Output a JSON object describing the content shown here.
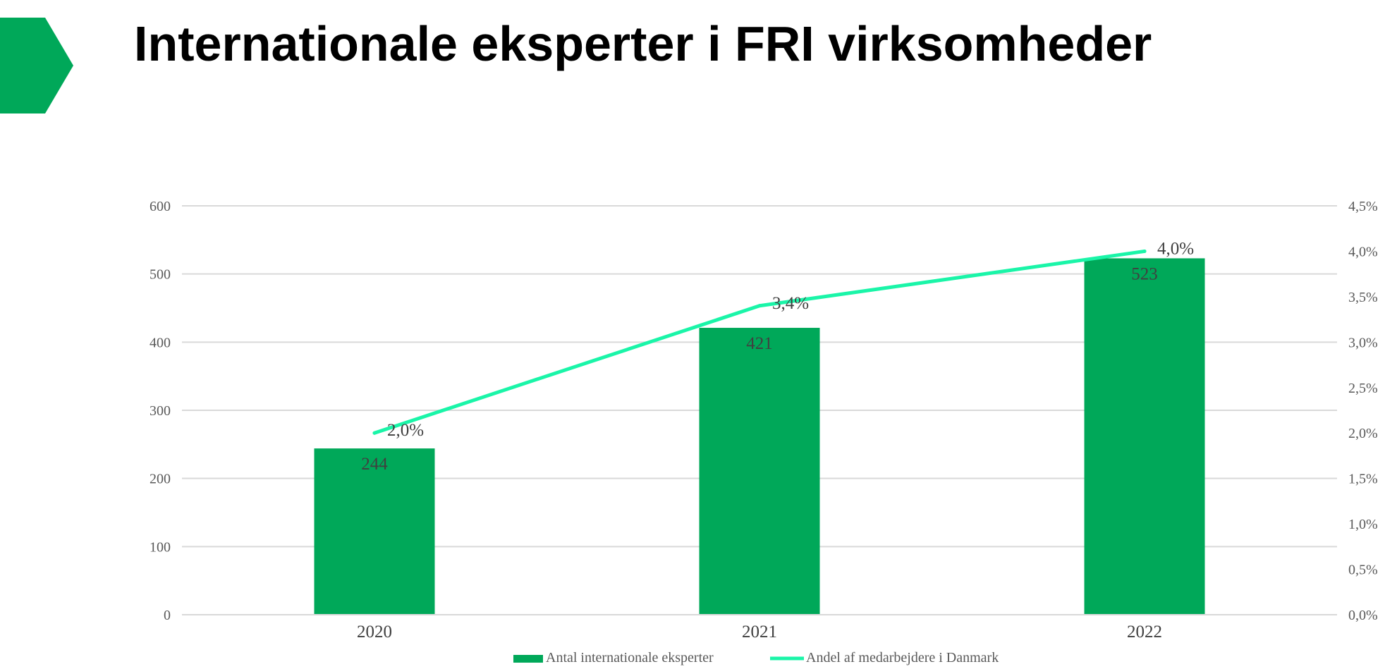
{
  "page": {
    "title": "Internationale eksperter i FRI virksomheder"
  },
  "colors": {
    "brand_green": "#00A859",
    "bar": "#00A859",
    "line": "#1AF5A8",
    "grid": "#D9D9D9",
    "text": "#404040"
  },
  "icons": {
    "chevron": "green-chevron-arrow"
  },
  "chart_data": {
    "type": "bar",
    "title": "",
    "categories": [
      "2020",
      "2021",
      "2022"
    ],
    "series": [
      {
        "name": "Antal internationale eksperter",
        "type": "bar",
        "axis": "left",
        "values": [
          244,
          421,
          523
        ],
        "labels": [
          "244",
          "421",
          "523"
        ]
      },
      {
        "name": "Andel af medarbejdere i Danmark",
        "type": "line",
        "axis": "right",
        "values": [
          2.0,
          3.4,
          4.0
        ],
        "labels": [
          "2,0%",
          "3,4%",
          "4,0%"
        ]
      }
    ],
    "y_left": {
      "min": 0,
      "max": 600,
      "ticks": [
        "0",
        "100",
        "200",
        "300",
        "400",
        "500",
        "600"
      ]
    },
    "y_right": {
      "min": 0,
      "max": 4.5,
      "ticks": [
        "0,0%",
        "0,5%",
        "1,0%",
        "1,5%",
        "2,0%",
        "2,5%",
        "3,0%",
        "3,5%",
        "4,0%",
        "4,5%"
      ]
    },
    "grid": true,
    "legend_position": "bottom"
  }
}
